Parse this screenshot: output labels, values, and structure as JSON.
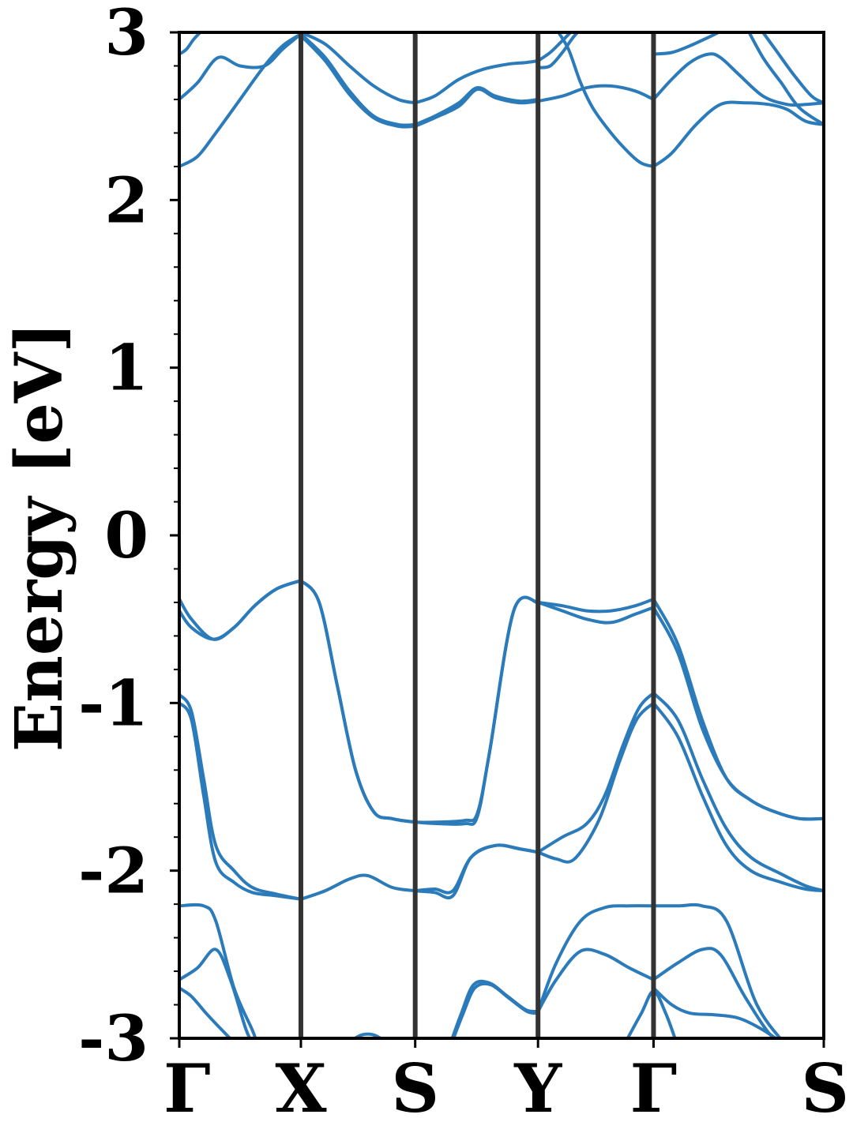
{
  "chart_data": {
    "type": "line",
    "ylabel": "Energy [eV]",
    "ylim": [
      -3,
      3
    ],
    "y_ticks": [
      "3",
      "2",
      "1",
      "0",
      "-1",
      "-2",
      "-3"
    ],
    "y_tick_values": [
      3,
      2,
      1,
      0,
      -1,
      -2,
      -3
    ],
    "y_minor_step": 0.2,
    "kpoints": [
      {
        "label": "Γ",
        "x": 0
      },
      {
        "label": "X",
        "x": 1
      },
      {
        "label": "S",
        "x": 1.94
      },
      {
        "label": "Y",
        "x": 2.95
      },
      {
        "label": "Γ",
        "x": 3.9
      },
      {
        "label": "S",
        "x": 5.3
      }
    ],
    "xlim": [
      0,
      5.3
    ],
    "line_color": "#2b7bba",
    "kline_color": "#333333",
    "series": [
      {
        "x": [
          0,
          0.1,
          0.28,
          0.45,
          0.62,
          0.8,
          1.0
        ],
        "values": [
          -0.38,
          -0.5,
          -0.62,
          -0.55,
          -0.42,
          -0.32,
          -0.27
        ]
      },
      {
        "x": [
          0,
          0.1,
          0.28,
          0.45,
          0.62,
          0.8,
          1.0
        ],
        "values": [
          -0.45,
          -0.55,
          -0.62,
          -0.55,
          -0.42,
          -0.32,
          -0.27
        ]
      },
      {
        "x": [
          1.0,
          1.15,
          1.3,
          1.45,
          1.6,
          1.75,
          1.94,
          2.15,
          2.35,
          2.45,
          2.55,
          2.75,
          2.95
        ],
        "values": [
          -0.27,
          -0.4,
          -0.9,
          -1.4,
          -1.65,
          -1.69,
          -1.71,
          -1.72,
          -1.72,
          -1.68,
          -1.3,
          -0.45,
          -0.4
        ]
      },
      {
        "x": [
          1.0,
          1.15,
          1.3,
          1.45,
          1.6,
          1.75,
          1.94,
          2.15,
          2.35,
          2.45,
          2.55,
          2.75,
          2.95
        ],
        "values": [
          -0.27,
          -0.4,
          -0.9,
          -1.4,
          -1.65,
          -1.69,
          -1.71,
          -1.71,
          -1.7,
          -1.66,
          -1.3,
          -0.45,
          -0.4
        ]
      },
      {
        "x": [
          2.95,
          3.15,
          3.35,
          3.55,
          3.75,
          3.9
        ],
        "values": [
          -0.4,
          -0.42,
          -0.45,
          -0.45,
          -0.42,
          -0.38
        ]
      },
      {
        "x": [
          2.95,
          3.15,
          3.35,
          3.55,
          3.75,
          3.9
        ],
        "values": [
          -0.4,
          -0.45,
          -0.5,
          -0.52,
          -0.47,
          -0.43
        ]
      },
      {
        "x": [
          3.9,
          4.1,
          4.3,
          4.5,
          4.7,
          4.9,
          5.1,
          5.3
        ],
        "values": [
          -0.38,
          -0.65,
          -1.1,
          -1.45,
          -1.58,
          -1.65,
          -1.69,
          -1.69
        ]
      },
      {
        "x": [
          3.9,
          4.1,
          4.3,
          4.5,
          4.7,
          4.9,
          5.1,
          5.3
        ],
        "values": [
          -0.43,
          -0.7,
          -1.15,
          -1.45,
          -1.58,
          -1.65,
          -1.69,
          -1.69
        ]
      },
      {
        "x": [
          0,
          0.1,
          0.2,
          0.3,
          0.45,
          0.6,
          0.8,
          1.0
        ],
        "values": [
          -0.95,
          -1.05,
          -1.45,
          -1.85,
          -2.0,
          -2.1,
          -2.14,
          -2.17
        ]
      },
      {
        "x": [
          0,
          0.1,
          0.2,
          0.3,
          0.45,
          0.6,
          0.8,
          1.0
        ],
        "values": [
          -1.0,
          -1.1,
          -1.55,
          -1.95,
          -2.07,
          -2.13,
          -2.15,
          -2.17
        ]
      },
      {
        "x": [
          1.0,
          1.2,
          1.4,
          1.55,
          1.75,
          1.94,
          2.1,
          2.25,
          2.4,
          2.6,
          2.8,
          2.95
        ],
        "values": [
          -2.17,
          -2.12,
          -2.05,
          -2.03,
          -2.1,
          -2.12,
          -2.13,
          -2.15,
          -1.92,
          -1.85,
          -1.87,
          -1.89
        ]
      },
      {
        "x": [
          1.94,
          2.1,
          2.25,
          2.4,
          2.6,
          2.8,
          2.95
        ],
        "values": [
          -2.12,
          -2.11,
          -2.12,
          -1.92,
          -1.85,
          -1.87,
          -1.89
        ]
      },
      {
        "x": [
          2.95,
          3.15,
          3.35,
          3.5,
          3.65,
          3.78,
          3.9
        ],
        "values": [
          -1.89,
          -1.8,
          -1.72,
          -1.55,
          -1.25,
          -1.03,
          -0.94
        ]
      },
      {
        "x": [
          2.95,
          3.1,
          3.25,
          3.45,
          3.62,
          3.76,
          3.9
        ],
        "values": [
          -1.89,
          -1.93,
          -1.93,
          -1.7,
          -1.35,
          -1.1,
          -1.0
        ]
      },
      {
        "x": [
          3.9,
          4.1,
          4.3,
          4.5,
          4.7,
          4.95,
          5.15,
          5.3
        ],
        "values": [
          -0.94,
          -1.1,
          -1.45,
          -1.75,
          -1.92,
          -2.02,
          -2.09,
          -2.12
        ]
      },
      {
        "x": [
          3.9,
          4.1,
          4.3,
          4.5,
          4.7,
          4.95,
          5.15,
          5.3
        ],
        "values": [
          -1.0,
          -1.2,
          -1.55,
          -1.85,
          -2.0,
          -2.07,
          -2.11,
          -2.12
        ]
      },
      {
        "x": [
          0,
          0.2,
          0.3,
          0.45,
          0.6,
          0.65
        ],
        "values": [
          -2.21,
          -2.21,
          -2.3,
          -2.7,
          -2.95,
          -3.05
        ]
      },
      {
        "x": [
          0,
          0.15,
          0.3,
          0.42,
          0.55,
          0.62
        ],
        "values": [
          -2.65,
          -2.58,
          -2.47,
          -2.65,
          -2.95,
          -3.05
        ]
      },
      {
        "x": [
          0,
          0.1,
          0.22,
          0.35,
          0.45,
          0.55
        ],
        "values": [
          -2.7,
          -2.75,
          -2.85,
          -2.95,
          -3.02,
          -3.05
        ]
      },
      {
        "x": [
          1.4,
          1.5,
          1.6,
          1.7
        ],
        "values": [
          -3.02,
          -2.98,
          -2.98,
          -3.02
        ]
      },
      {
        "x": [
          2.22,
          2.32,
          2.42,
          2.55,
          2.7,
          2.85,
          2.95
        ],
        "values": [
          -3.05,
          -2.85,
          -2.68,
          -2.67,
          -2.75,
          -2.83,
          -2.84
        ]
      },
      {
        "x": [
          2.23,
          2.33,
          2.43,
          2.56,
          2.71,
          2.86,
          2.95
        ],
        "values": [
          -3.05,
          -2.86,
          -2.7,
          -2.68,
          -2.76,
          -2.84,
          -2.85
        ]
      },
      {
        "x": [
          2.95,
          3.1,
          3.3,
          3.5,
          3.7,
          3.9
        ],
        "values": [
          -2.84,
          -2.65,
          -2.48,
          -2.5,
          -2.58,
          -2.65
        ]
      },
      {
        "x": [
          2.95,
          3.1,
          3.3,
          3.5,
          3.7,
          3.9
        ],
        "values": [
          -2.84,
          -2.55,
          -2.3,
          -2.22,
          -2.21,
          -2.21
        ]
      },
      {
        "x": [
          3.9,
          4.1,
          4.3,
          4.5,
          4.75,
          5.0
        ],
        "values": [
          -2.21,
          -2.21,
          -2.21,
          -2.3,
          -2.8,
          -3.05
        ]
      },
      {
        "x": [
          3.9,
          4.1,
          4.3,
          4.45,
          4.65,
          4.85,
          5.0
        ],
        "values": [
          -2.65,
          -2.55,
          -2.47,
          -2.5,
          -2.75,
          -2.97,
          -3.05
        ]
      },
      {
        "x": [
          3.9,
          4.05,
          4.2,
          4.4,
          4.6,
          4.8,
          5.0
        ],
        "values": [
          -2.7,
          -2.8,
          -2.85,
          -2.86,
          -2.88,
          -2.95,
          -3.05
        ]
      },
      {
        "x": [
          3.65,
          3.8,
          3.9,
          4.0,
          4.1
        ],
        "values": [
          -3.05,
          -2.85,
          -2.72,
          -2.85,
          -3.05
        ]
      },
      {
        "x": [
          0,
          0.15,
          0.3,
          0.5,
          0.7,
          0.85,
          1.0
        ],
        "values": [
          2.2,
          2.26,
          2.4,
          2.6,
          2.8,
          2.92,
          2.99
        ]
      },
      {
        "x": [
          0,
          0.15,
          0.32,
          0.5,
          0.7,
          0.85,
          1.0
        ],
        "values": [
          2.6,
          2.7,
          2.85,
          2.8,
          2.8,
          2.9,
          2.99
        ]
      },
      {
        "x": [
          0,
          0.06,
          0.12,
          0.2
        ],
        "values": [
          2.87,
          2.9,
          2.96,
          3.02
        ]
      },
      {
        "x": [
          1.0,
          1.2,
          1.4,
          1.6,
          1.8,
          1.94
        ],
        "values": [
          2.99,
          2.85,
          2.65,
          2.5,
          2.45,
          2.45
        ]
      },
      {
        "x": [
          1.0,
          1.2,
          1.4,
          1.6,
          1.8,
          1.94
        ],
        "values": [
          2.98,
          2.83,
          2.63,
          2.49,
          2.44,
          2.44
        ]
      },
      {
        "x": [
          1.0,
          1.2,
          1.4,
          1.6,
          1.8,
          1.94
        ],
        "values": [
          3.0,
          2.93,
          2.8,
          2.68,
          2.6,
          2.58
        ]
      },
      {
        "x": [
          1.94,
          2.1,
          2.3,
          2.45,
          2.6,
          2.8,
          2.95
        ],
        "values": [
          2.45,
          2.5,
          2.58,
          2.67,
          2.62,
          2.59,
          2.6
        ]
      },
      {
        "x": [
          1.94,
          2.1,
          2.3,
          2.45,
          2.6,
          2.8,
          2.95
        ],
        "values": [
          2.44,
          2.49,
          2.56,
          2.66,
          2.61,
          2.58,
          2.59
        ]
      },
      {
        "x": [
          1.94,
          2.1,
          2.3,
          2.5,
          2.7,
          2.85,
          2.95
        ],
        "values": [
          2.58,
          2.62,
          2.72,
          2.78,
          2.81,
          2.82,
          2.83
        ]
      },
      {
        "x": [
          2.95,
          3.05,
          3.15,
          3.25,
          3.35
        ],
        "values": [
          2.83,
          2.88,
          2.95,
          3.02,
          3.05
        ]
      },
      {
        "x": [
          2.95,
          3.05,
          3.15,
          3.25,
          3.35
        ],
        "values": [
          2.79,
          2.8,
          2.88,
          2.98,
          3.05
        ]
      },
      {
        "x": [
          3.1,
          3.2,
          3.3,
          3.4,
          3.55,
          3.7,
          3.8,
          3.9
        ],
        "values": [
          3.02,
          2.9,
          2.7,
          2.55,
          2.4,
          2.28,
          2.22,
          2.2
        ]
      },
      {
        "x": [
          2.95,
          3.15,
          3.35,
          3.55,
          3.75,
          3.9
        ],
        "values": [
          2.59,
          2.62,
          2.67,
          2.68,
          2.65,
          2.6
        ]
      },
      {
        "x": [
          3.9,
          4.05,
          4.2,
          4.35,
          4.5,
          4.65
        ],
        "values": [
          2.87,
          2.88,
          2.92,
          2.97,
          3.02,
          3.05
        ]
      },
      {
        "x": [
          3.9,
          4.05,
          4.2,
          4.35,
          4.45,
          4.6,
          4.8,
          5.0,
          5.15,
          5.3
        ],
        "values": [
          2.6,
          2.72,
          2.82,
          2.87,
          2.85,
          2.75,
          2.62,
          2.57,
          2.57,
          2.58
        ]
      },
      {
        "x": [
          3.9,
          4.05,
          4.25,
          4.45,
          4.65,
          4.85,
          5.0,
          5.15,
          5.3
        ],
        "values": [
          2.2,
          2.28,
          2.45,
          2.57,
          2.58,
          2.57,
          2.54,
          2.47,
          2.45
        ]
      },
      {
        "x": [
          4.65,
          4.8,
          4.95,
          5.1,
          5.3
        ],
        "values": [
          3.05,
          2.85,
          2.7,
          2.55,
          2.45
        ]
      },
      {
        "x": [
          4.75,
          4.9,
          5.05,
          5.2,
          5.3
        ],
        "values": [
          3.05,
          2.9,
          2.75,
          2.62,
          2.58
        ]
      }
    ]
  }
}
